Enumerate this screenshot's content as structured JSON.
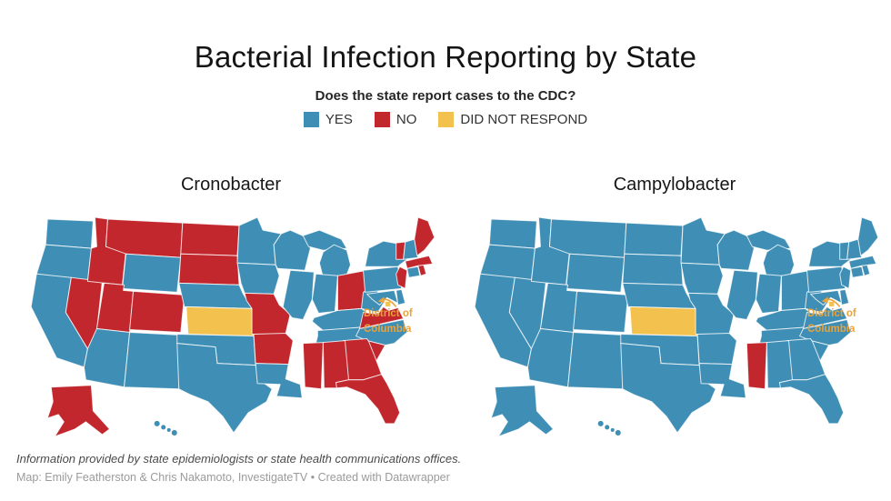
{
  "title": "Bacterial Infection Reporting by State",
  "legend": {
    "question": "Does the state report cases to the CDC?",
    "items": [
      {
        "key": "yes",
        "label": "YES",
        "color": "#3E8EB5"
      },
      {
        "key": "no",
        "label": "NO",
        "color": "#C1272D"
      },
      {
        "key": "did_not_respond",
        "label": "DID NOT RESPOND",
        "color": "#F2C14E"
      }
    ]
  },
  "colors": {
    "yes": "#3E8EB5",
    "no": "#C1272D",
    "did_not_respond": "#F2C14E",
    "dc_annotation": "#E9A33B"
  },
  "chart_data": [
    {
      "type": "choropleth-map",
      "title": "Cronobacter",
      "legend_position": "top-center",
      "categories": [
        "YES",
        "NO",
        "DID NOT RESPOND"
      ],
      "states": {
        "WA": "yes",
        "OR": "yes",
        "CA": "yes",
        "NV": "no",
        "ID": "no",
        "MT": "no",
        "WY": "yes",
        "UT": "no",
        "CO": "no",
        "AZ": "yes",
        "NM": "yes",
        "ND": "no",
        "SD": "no",
        "NE": "yes",
        "KS": "did_not_respond",
        "OK": "yes",
        "TX": "yes",
        "MN": "yes",
        "IA": "yes",
        "MO": "no",
        "AR": "no",
        "LA": "yes",
        "WI": "yes",
        "IL": "yes",
        "MI": "yes",
        "IN": "yes",
        "OH": "no",
        "KY": "yes",
        "TN": "yes",
        "MS": "no",
        "AL": "no",
        "GA": "no",
        "FL": "no",
        "SC": "no",
        "NC": "yes",
        "VA": "no",
        "WV": "yes",
        "MD": "yes",
        "DE": "yes",
        "DC": "did_not_respond",
        "PA": "yes",
        "NJ": "no",
        "NY": "yes",
        "CT": "yes",
        "RI": "no",
        "MA": "no",
        "VT": "no",
        "NH": "yes",
        "ME": "no",
        "AK": "no",
        "HI": "yes"
      },
      "dc_annotation": "District of Columbia"
    },
    {
      "type": "choropleth-map",
      "title": "Campylobacter",
      "legend_position": "top-center",
      "categories": [
        "YES",
        "NO",
        "DID NOT RESPOND"
      ],
      "states": {
        "WA": "yes",
        "OR": "yes",
        "CA": "yes",
        "NV": "yes",
        "ID": "yes",
        "MT": "yes",
        "WY": "yes",
        "UT": "yes",
        "CO": "yes",
        "AZ": "yes",
        "NM": "yes",
        "ND": "yes",
        "SD": "yes",
        "NE": "yes",
        "KS": "did_not_respond",
        "OK": "yes",
        "TX": "yes",
        "MN": "yes",
        "IA": "yes",
        "MO": "yes",
        "AR": "yes",
        "LA": "yes",
        "WI": "yes",
        "IL": "yes",
        "MI": "yes",
        "IN": "yes",
        "OH": "yes",
        "KY": "yes",
        "TN": "yes",
        "MS": "no",
        "AL": "yes",
        "GA": "yes",
        "FL": "yes",
        "SC": "yes",
        "NC": "yes",
        "VA": "yes",
        "WV": "yes",
        "MD": "yes",
        "DE": "yes",
        "DC": "did_not_respond",
        "PA": "yes",
        "NJ": "yes",
        "NY": "yes",
        "CT": "yes",
        "RI": "yes",
        "MA": "yes",
        "VT": "yes",
        "NH": "yes",
        "ME": "yes",
        "AK": "yes",
        "HI": "yes"
      },
      "dc_annotation": "District of Columbia"
    }
  ],
  "footer": {
    "source_note": "Information provided by state epidemiologists or state health communications offices.",
    "byline": "Map: Emily Featherston & Chris Nakamoto, InvestigateTV • Created with Datawrapper"
  }
}
